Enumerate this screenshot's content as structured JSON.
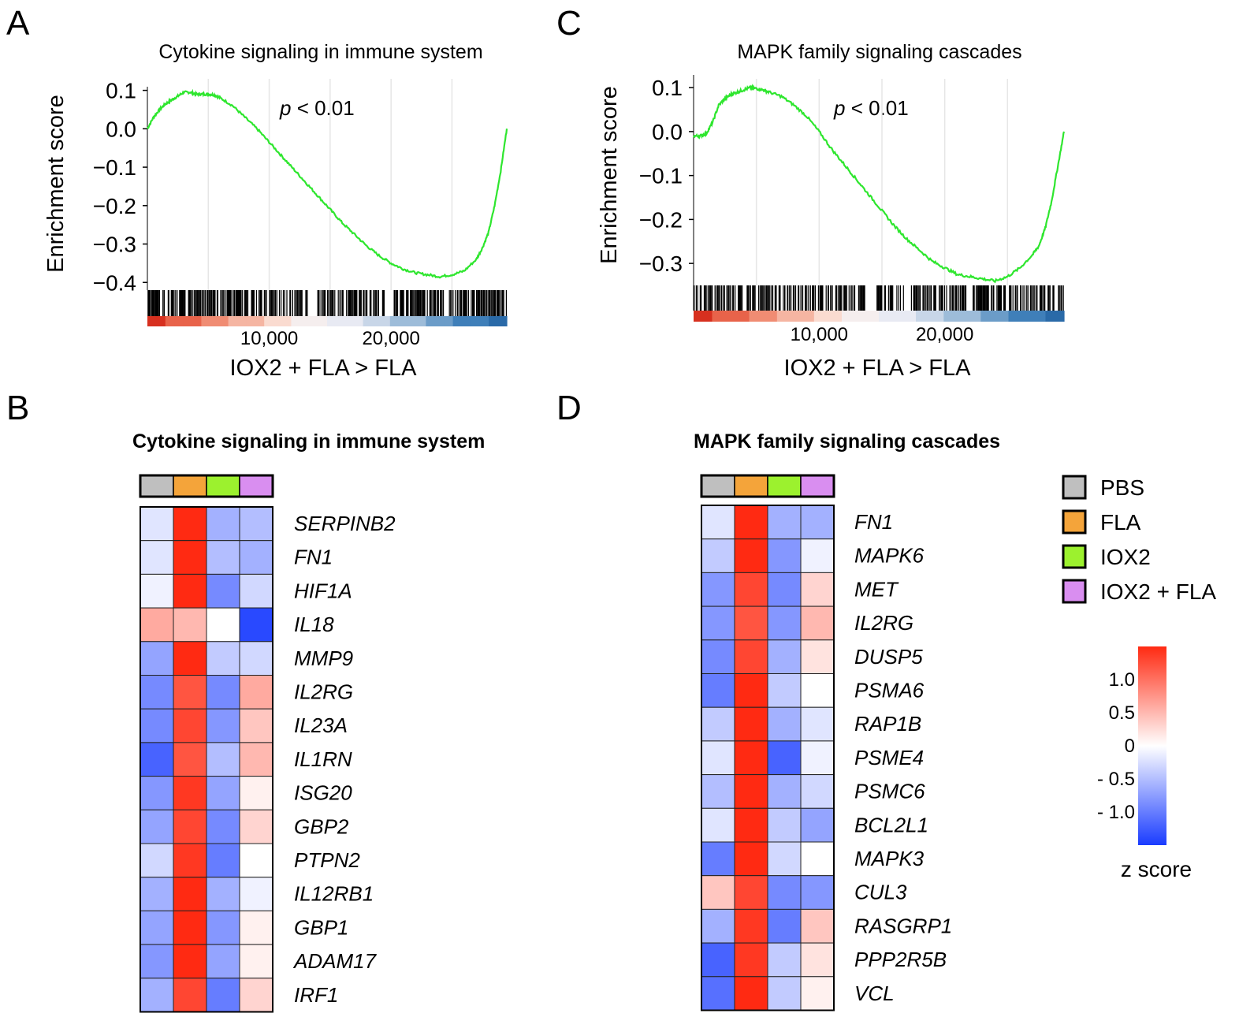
{
  "panels": {
    "A": {
      "letter": "A",
      "title": "Cytokine signaling in immune system",
      "ylabel": "Enrichment score",
      "xlabel": "IOX2 + FLA > FLA",
      "pvalue_p": "p",
      "pvalue_rest": " < 0.01",
      "y_ticks": [
        "0.1",
        "0.0",
        "−0.1",
        "−0.2",
        "−0.3",
        "−0.4"
      ],
      "x_ticks": [
        "10,000",
        "20,000"
      ]
    },
    "C": {
      "letter": "C",
      "title": "MAPK family signaling cascades",
      "ylabel": "Enrichment score",
      "xlabel": "IOX2 + FLA > FLA",
      "pvalue_p": "p",
      "pvalue_rest": " < 0.01",
      "y_ticks": [
        "0.1",
        "0.0",
        "−0.1",
        "−0.2",
        "−0.3"
      ],
      "x_ticks": [
        "10,000",
        "20,000"
      ]
    },
    "B": {
      "letter": "B",
      "title": "Cytokine signaling in immune system"
    },
    "D": {
      "letter": "D",
      "title": "MAPK family signaling cascades"
    }
  },
  "legend": {
    "groups": [
      {
        "label": "PBS",
        "color": "#bfbfbf"
      },
      {
        "label": "FLA",
        "color": "#f4a43a"
      },
      {
        "label": "IOX2",
        "color": "#9cf12e"
      },
      {
        "label": "IOX2 + FLA",
        "color": "#d98ef0"
      }
    ],
    "scale_ticks": [
      "1.0",
      "0.5",
      "0",
      "- 0.5",
      "- 1.0"
    ],
    "scale_title": "z score",
    "colors": {
      "high": "#ff2a12",
      "mid": "#ffffff",
      "low": "#1a3cff"
    }
  },
  "chart_data": [
    {
      "type": "line",
      "panel": "A",
      "title": "Cytokine signaling in immune system",
      "xlabel": "IOX2 + FLA > FLA",
      "ylabel": "Enrichment score",
      "xlim": [
        0,
        29500
      ],
      "ylim": [
        -0.42,
        0.13
      ],
      "line_color": "#2ee62e",
      "x": [
        0,
        500,
        1000,
        1500,
        2000,
        2500,
        3000,
        3500,
        4000,
        4500,
        5000,
        5500,
        6000,
        7000,
        8000,
        9000,
        10000,
        11000,
        12000,
        13000,
        14000,
        15000,
        16000,
        17000,
        18000,
        19000,
        20000,
        21000,
        22000,
        23000,
        24000,
        25000,
        26000,
        27000,
        27500,
        28000,
        28500,
        29000,
        29500
      ],
      "y": [
        0.0,
        0.03,
        0.05,
        0.065,
        0.075,
        0.085,
        0.095,
        0.095,
        0.09,
        0.09,
        0.09,
        0.088,
        0.08,
        0.06,
        0.03,
        0.0,
        -0.035,
        -0.07,
        -0.105,
        -0.14,
        -0.175,
        -0.21,
        -0.245,
        -0.275,
        -0.305,
        -0.33,
        -0.35,
        -0.365,
        -0.375,
        -0.38,
        -0.385,
        -0.38,
        -0.37,
        -0.34,
        -0.31,
        -0.27,
        -0.2,
        -0.11,
        0.0
      ]
    },
    {
      "type": "line",
      "panel": "C",
      "title": "MAPK family signaling cascades",
      "xlabel": "IOX2 + FLA > FLA",
      "ylabel": "Enrichment score",
      "xlim": [
        0,
        29500
      ],
      "ylim": [
        -0.35,
        0.12
      ],
      "line_color": "#2ee62e",
      "x": [
        0,
        500,
        1000,
        1500,
        2000,
        2500,
        3000,
        3500,
        4000,
        4500,
        5000,
        5500,
        6000,
        7000,
        8000,
        9000,
        10000,
        11000,
        12000,
        13000,
        14000,
        15000,
        16000,
        17000,
        18000,
        19000,
        20000,
        21000,
        22000,
        23000,
        24000,
        25000,
        26000,
        27000,
        27500,
        28000,
        28500,
        29000,
        29500
      ],
      "y": [
        -0.01,
        -0.01,
        -0.005,
        0.02,
        0.06,
        0.075,
        0.085,
        0.09,
        0.095,
        0.1,
        0.098,
        0.095,
        0.09,
        0.08,
        0.06,
        0.035,
        0.0,
        -0.04,
        -0.075,
        -0.11,
        -0.145,
        -0.18,
        -0.215,
        -0.245,
        -0.27,
        -0.295,
        -0.31,
        -0.325,
        -0.33,
        -0.335,
        -0.34,
        -0.33,
        -0.31,
        -0.28,
        -0.26,
        -0.22,
        -0.16,
        -0.08,
        0.0
      ]
    },
    {
      "type": "heatmap",
      "panel": "B",
      "title": "Cytokine signaling in immune system",
      "columns": [
        "PBS",
        "FLA",
        "IOX2",
        "IOX2 + FLA"
      ],
      "rows": [
        "SERPINB2",
        "FN1",
        "HIF1A",
        "IL18",
        "MMP9",
        "IL2RG",
        "IL23A",
        "IL1RN",
        "ISG20",
        "GBP2",
        "PTPN2",
        "IL12RB1",
        "GBP1",
        "ADAM17",
        "IRF1"
      ],
      "values": [
        [
          -0.2,
          1.5,
          -0.6,
          -0.5
        ],
        [
          -0.2,
          1.5,
          -0.5,
          -0.6
        ],
        [
          -0.1,
          1.5,
          -0.9,
          -0.3
        ],
        [
          0.6,
          0.5,
          0.0,
          -1.4
        ],
        [
          -0.7,
          1.5,
          -0.4,
          -0.3
        ],
        [
          -0.9,
          1.2,
          -0.9,
          0.6
        ],
        [
          -0.9,
          1.3,
          -0.8,
          0.4
        ],
        [
          -1.2,
          1.2,
          -0.5,
          0.5
        ],
        [
          -0.8,
          1.4,
          -0.7,
          0.1
        ],
        [
          -0.7,
          1.3,
          -0.9,
          0.3
        ],
        [
          -0.3,
          1.4,
          -1.0,
          0.0
        ],
        [
          -0.6,
          1.5,
          -0.6,
          -0.1
        ],
        [
          -0.7,
          1.5,
          -0.8,
          0.1
        ],
        [
          -0.8,
          1.5,
          -0.7,
          0.1
        ],
        [
          -0.6,
          1.3,
          -1.0,
          0.3
        ]
      ]
    },
    {
      "type": "heatmap",
      "panel": "D",
      "title": "MAPK family signaling cascades",
      "columns": [
        "PBS",
        "FLA",
        "IOX2",
        "IOX2 + FLA"
      ],
      "rows": [
        "FN1",
        "MAPK6",
        "MET",
        "IL2RG",
        "DUSP5",
        "PSMA6",
        "RAP1B",
        "PSME4",
        "PSMC6",
        "BCL2L1",
        "MAPK3",
        "CUL3",
        "RASGRP1",
        "PPP2R5B",
        "VCL"
      ],
      "values": [
        [
          -0.2,
          1.5,
          -0.6,
          -0.6
        ],
        [
          -0.4,
          1.5,
          -0.8,
          -0.1
        ],
        [
          -0.8,
          1.3,
          -0.9,
          0.3
        ],
        [
          -0.8,
          1.2,
          -0.8,
          0.5
        ],
        [
          -0.9,
          1.3,
          -0.6,
          0.2
        ],
        [
          -1.0,
          1.5,
          -0.4,
          0.0
        ],
        [
          -0.4,
          1.5,
          -0.6,
          -0.2
        ],
        [
          -0.2,
          1.5,
          -1.2,
          -0.1
        ],
        [
          -0.5,
          1.5,
          -0.6,
          -0.3
        ],
        [
          -0.2,
          1.5,
          -0.4,
          -0.7
        ],
        [
          -1.0,
          1.5,
          -0.3,
          0.0
        ],
        [
          0.4,
          1.3,
          -0.9,
          -0.8
        ],
        [
          -0.6,
          1.4,
          -1.0,
          0.4
        ],
        [
          -1.2,
          1.4,
          -0.4,
          0.2
        ],
        [
          -1.1,
          1.5,
          -0.4,
          0.1
        ]
      ]
    }
  ]
}
